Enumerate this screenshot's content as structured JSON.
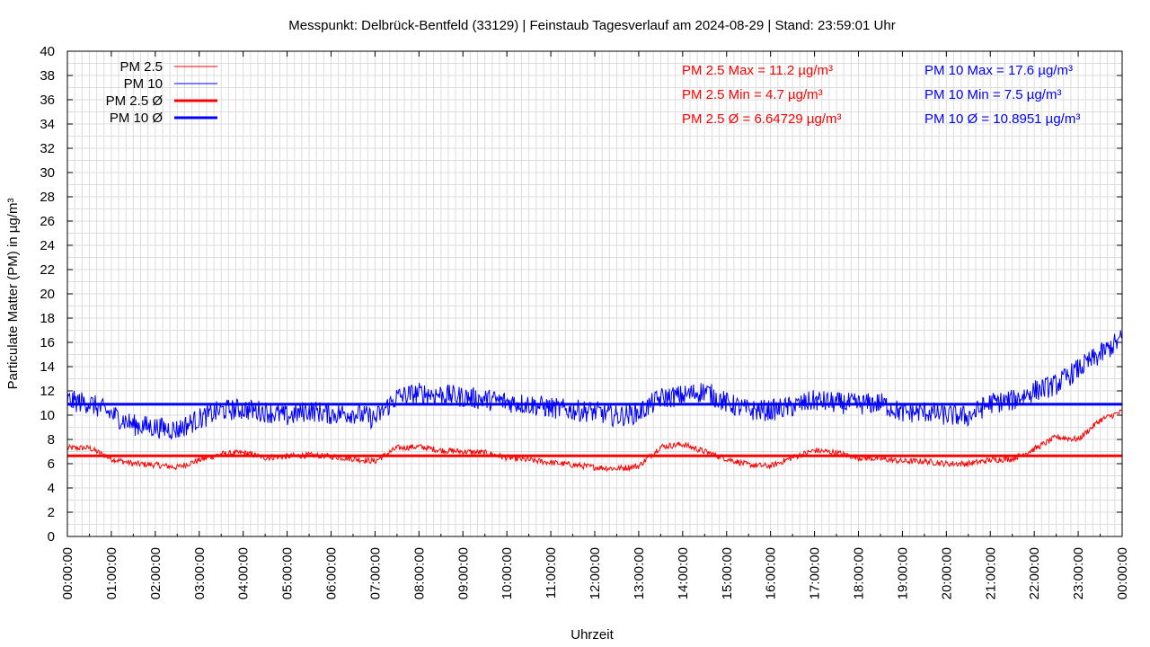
{
  "chart_data": {
    "type": "line",
    "title": "Messpunkt: Delbrück-Bentfeld (33129) | Feinstaub Tagesverlauf am 2024-08-29 | Stand: 23:59:01 Uhr",
    "xlabel": "Uhrzeit",
    "ylabel": "Particulate Matter (PM) in µg/m³",
    "ylim": [
      0,
      40
    ],
    "yticks": [
      0,
      2,
      4,
      6,
      8,
      10,
      12,
      14,
      16,
      18,
      20,
      22,
      24,
      26,
      28,
      30,
      32,
      34,
      36,
      38,
      40
    ],
    "xticks": [
      "00:00:00",
      "01:00:00",
      "02:00:00",
      "03:00:00",
      "04:00:00",
      "05:00:00",
      "06:00:00",
      "07:00:00",
      "08:00:00",
      "09:00:00",
      "10:00:00",
      "11:00:00",
      "12:00:00",
      "13:00:00",
      "14:00:00",
      "15:00:00",
      "16:00:00",
      "17:00:00",
      "18:00:00",
      "19:00:00",
      "20:00:00",
      "21:00:00",
      "22:00:00",
      "23:00:00",
      "00:00:00"
    ],
    "x_hours": [
      0,
      0.5,
      1,
      1.5,
      2,
      2.5,
      3,
      3.5,
      4,
      4.5,
      5,
      5.5,
      6,
      6.5,
      7,
      7.5,
      8,
      8.5,
      9,
      9.5,
      10,
      10.5,
      11,
      11.5,
      12,
      12.5,
      13,
      13.5,
      14,
      14.5,
      15,
      15.5,
      16,
      16.5,
      17,
      17.5,
      18,
      18.5,
      19,
      19.5,
      20,
      20.5,
      21,
      21.5,
      22,
      22.5,
      23,
      23.5,
      24
    ],
    "grid": true,
    "legend_position": "top-left",
    "series": [
      {
        "name": "PM 2.5",
        "color": "#ff0000",
        "values": [
          7.3,
          7.3,
          6.4,
          6.0,
          5.9,
          5.7,
          6.3,
          6.8,
          6.9,
          6.5,
          6.6,
          6.7,
          6.6,
          6.4,
          6.2,
          7.3,
          7.4,
          7.1,
          7.0,
          6.9,
          6.5,
          6.3,
          6.1,
          5.9,
          5.7,
          5.6,
          5.8,
          7.4,
          7.6,
          7.0,
          6.4,
          5.9,
          5.8,
          6.5,
          7.1,
          6.9,
          6.5,
          6.4,
          6.2,
          6.2,
          6.0,
          6.0,
          6.3,
          6.4,
          7.2,
          8.2,
          8.0,
          9.6,
          10.3
        ]
      },
      {
        "name": "PM 10",
        "color": "#0000ff",
        "values": [
          11.2,
          11.0,
          10.1,
          9.2,
          9.0,
          8.8,
          9.7,
          10.4,
          10.5,
          10.3,
          9.9,
          10.4,
          10.1,
          10.2,
          9.7,
          11.5,
          11.8,
          11.7,
          11.5,
          11.3,
          11.1,
          10.9,
          10.6,
          10.4,
          10.3,
          9.9,
          10.2,
          11.4,
          11.6,
          12.0,
          11.0,
          10.4,
          10.4,
          10.7,
          11.2,
          11.0,
          10.9,
          11.0,
          10.2,
          10.3,
          10.0,
          9.9,
          11.0,
          11.2,
          12.0,
          12.5,
          13.8,
          15.0,
          16.3
        ]
      },
      {
        "name": "PM 2.5 Ø",
        "color": "#ff0000",
        "constant": 6.64729
      },
      {
        "name": "PM 10 Ø",
        "color": "#0000ff",
        "constant": 10.8951
      }
    ],
    "stats": {
      "pm25": [
        "PM 2.5 Max = 11.2 µg/m³",
        "PM 2.5 Min = 4.7 µg/m³",
        "PM 2.5 Ø = 6.64729 µg/m³"
      ],
      "pm10": [
        "PM 10 Max = 17.6 µg/m³",
        "PM 10 Min = 7.5 µg/m³",
        "PM 10 Ø = 10.8951 µg/m³"
      ]
    }
  }
}
